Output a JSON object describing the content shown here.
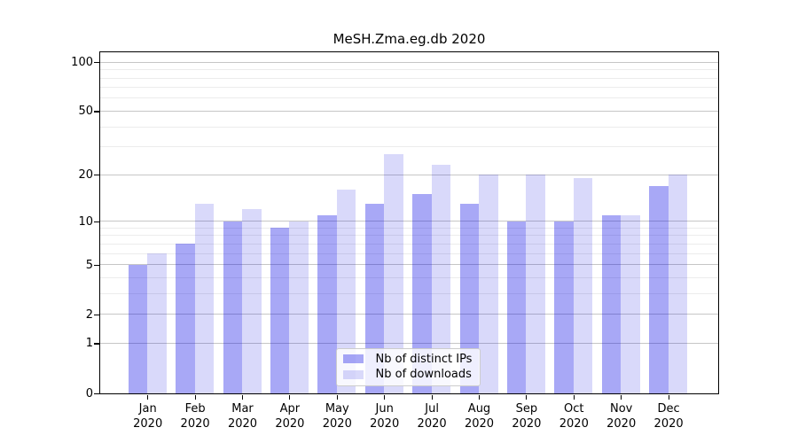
{
  "chart_data": {
    "type": "bar",
    "title": "MeSH.Zma.eg.db 2020",
    "categories": [
      "Jan 2020",
      "Feb 2020",
      "Mar 2020",
      "Apr 2020",
      "May 2020",
      "Jun 2020",
      "Jul 2020",
      "Aug 2020",
      "Sep 2020",
      "Oct 2020",
      "Nov 2020",
      "Dec 2020"
    ],
    "series": [
      {
        "name": "Nb of distinct IPs",
        "values": [
          5,
          7,
          10,
          9,
          11,
          13,
          15,
          13,
          10,
          10,
          11,
          17
        ],
        "color": "rgba(0,0,230,0.34)"
      },
      {
        "name": "Nb of downloads",
        "values": [
          6,
          13,
          12,
          10,
          16,
          27,
          23,
          20,
          20,
          19,
          11,
          20
        ],
        "color": "rgba(0,0,222,0.15)"
      }
    ],
    "xlabel": "",
    "ylabel": "",
    "y_scale": "log1p",
    "ylim": [
      0,
      110
    ],
    "y_ticks_major": [
      0,
      1,
      2,
      5,
      10,
      20,
      50,
      100
    ],
    "y_ticks_minor": [
      3,
      4,
      6,
      7,
      8,
      9,
      30,
      40,
      60,
      70,
      80,
      90
    ],
    "grid": "horizontal",
    "legend_position": "inside-bottom-center"
  },
  "colors": {
    "bar_dark": "#aaaaf6",
    "bar_light": "#d8d8fa",
    "grid_major": "#c6c6c6",
    "grid_minor": "#ececec",
    "frame": "#000000",
    "legend_border": "#cccccc",
    "text": "#000000"
  }
}
